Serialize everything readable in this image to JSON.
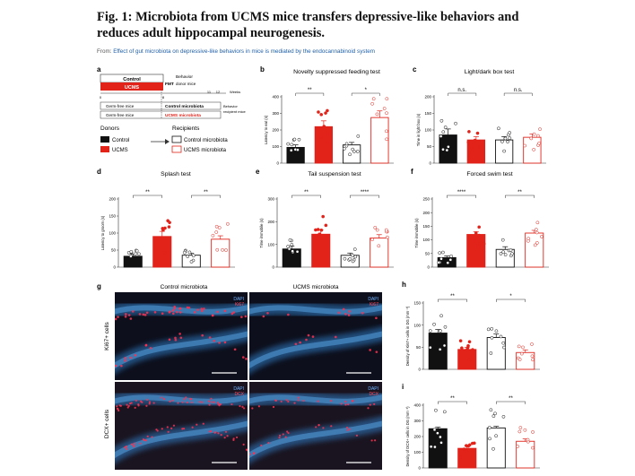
{
  "title": "Fig. 1: Microbiota from UCMS mice transfers depressive-like behaviors and reduces adult hippocampal neurogenesis.",
  "from": {
    "prefix": "From: ",
    "link": "Effect of gut microbiota on depressive-like behaviors in mice is mediated by the endocannabinoid system"
  },
  "colors": {
    "control": "#111111",
    "ucms": "#e2231a",
    "recipient_control": "#ffffff",
    "recipient_ucms": "#f3a28f",
    "dapi": "#2d7fc8"
  },
  "panel_a": {
    "label": "a",
    "control": "Control",
    "ucms": "UCMS",
    "behavior": "Behavior",
    "fmt": "FMT",
    "donor_mice": "donor mice",
    "germ_free": "Germ-free mice",
    "control_microbiota": "Control microbiota",
    "ucms_microbiota": "UCMS microbiota",
    "recipient_mice": "recipient mice",
    "weeks": "Weeks",
    "ticks": [
      "0",
      "8",
      "11",
      "12"
    ],
    "donors": "Donors",
    "recipients": "Recipients"
  },
  "chart_data": [
    {
      "panel": "b",
      "type": "bar",
      "title": "Novelty suppressed feeding test",
      "ylabel": "Latency to eat (s)",
      "ylim": [
        0,
        400
      ],
      "yticks": [
        0,
        100,
        200,
        300,
        400
      ],
      "categories": [
        "Control",
        "UCMS",
        "Control microbiota",
        "UCMS microbiota"
      ],
      "values": [
        95,
        220,
        110,
        275
      ],
      "errors": [
        15,
        35,
        15,
        40
      ],
      "significance": [
        {
          "pair": [
            0,
            1
          ],
          "label": "**"
        },
        {
          "pair": [
            2,
            3
          ],
          "label": "*"
        }
      ]
    },
    {
      "panel": "c",
      "type": "bar",
      "title": "Light/dark box test",
      "ylabel": "Time in light box (s)",
      "ylim": [
        0,
        200
      ],
      "yticks": [
        0,
        50,
        100,
        150,
        200
      ],
      "categories": [
        "Control",
        "UCMS",
        "Control microbiota",
        "UCMS microbiota"
      ],
      "values": [
        85,
        70,
        70,
        78
      ],
      "errors": [
        18,
        10,
        10,
        10
      ],
      "significance": [
        {
          "pair": [
            0,
            1
          ],
          "label": "n.s."
        },
        {
          "pair": [
            2,
            3
          ],
          "label": "n.s."
        }
      ]
    },
    {
      "panel": "d",
      "type": "bar",
      "title": "Splash test",
      "ylabel": "Latency to groom (s)",
      "ylim": [
        0,
        200
      ],
      "yticks": [
        0,
        50,
        100,
        150,
        200
      ],
      "categories": [
        "Control",
        "UCMS",
        "Control microbiota",
        "UCMS microbiota"
      ],
      "values": [
        32,
        90,
        35,
        82
      ],
      "errors": [
        6,
        15,
        6,
        10
      ],
      "significance": [
        {
          "pair": [
            0,
            1
          ],
          "label": "**"
        },
        {
          "pair": [
            2,
            3
          ],
          "label": "**"
        }
      ]
    },
    {
      "panel": "e",
      "type": "bar",
      "title": "Tail suspension test",
      "ylabel": "Time immobile (s)",
      "ylim": [
        0,
        300
      ],
      "yticks": [
        0,
        100,
        200,
        300
      ],
      "categories": [
        "Control",
        "UCMS",
        "Control microbiota",
        "UCMS microbiota"
      ],
      "values": [
        80,
        145,
        52,
        128
      ],
      "errors": [
        12,
        18,
        10,
        15
      ],
      "significance": [
        {
          "pair": [
            0,
            1
          ],
          "label": "**"
        },
        {
          "pair": [
            2,
            3
          ],
          "label": "****"
        }
      ]
    },
    {
      "panel": "f",
      "type": "bar",
      "title": "Forced swim test",
      "ylabel": "Time immobile (s)",
      "ylim": [
        0,
        250
      ],
      "yticks": [
        0,
        50,
        100,
        150,
        200,
        250
      ],
      "categories": [
        "Control",
        "UCMS",
        "Control microbiota",
        "UCMS microbiota"
      ],
      "values": [
        35,
        120,
        65,
        125
      ],
      "errors": [
        6,
        10,
        10,
        10
      ],
      "significance": [
        {
          "pair": [
            0,
            1
          ],
          "label": "****"
        },
        {
          "pair": [
            2,
            3
          ],
          "label": "**"
        }
      ]
    },
    {
      "panel": "h",
      "type": "bar",
      "title": "",
      "ylabel": "Density of Ki67+ cells in DG (mm⁻³)",
      "ylim": [
        0,
        150
      ],
      "yticks": [
        0,
        50,
        100,
        150
      ],
      "categories": [
        "Control",
        "UCMS",
        "Control microbiota",
        "UCMS microbiota"
      ],
      "values": [
        82,
        45,
        72,
        38
      ],
      "errors": [
        8,
        5,
        8,
        6
      ],
      "significance": [
        {
          "pair": [
            0,
            1
          ],
          "label": "**"
        },
        {
          "pair": [
            2,
            3
          ],
          "label": "*"
        }
      ]
    },
    {
      "panel": "i",
      "type": "bar",
      "title": "",
      "ylabel": "Density of DCX+ cells in DG (mm⁻³)",
      "ylim": [
        0,
        400
      ],
      "yticks": [
        0,
        100,
        200,
        300,
        400
      ],
      "categories": [
        "Control",
        "UCMS",
        "Control microbiota",
        "UCMS microbiota"
      ],
      "values": [
        250,
        125,
        255,
        170
      ],
      "errors": [
        10,
        15,
        10,
        15
      ],
      "significance": [
        {
          "pair": [
            0,
            1
          ],
          "label": "**"
        },
        {
          "pair": [
            2,
            3
          ],
          "label": "**"
        }
      ]
    }
  ],
  "panel_g": {
    "label": "g",
    "col_control": "Control microbiota",
    "col_ucms": "UCMS microbiota",
    "row_ki67": "Ki67+ cells",
    "row_dcx": "DCX+ cells",
    "dapi": "DAPI",
    "ki67": "Ki67",
    "dcx": "DCX"
  }
}
